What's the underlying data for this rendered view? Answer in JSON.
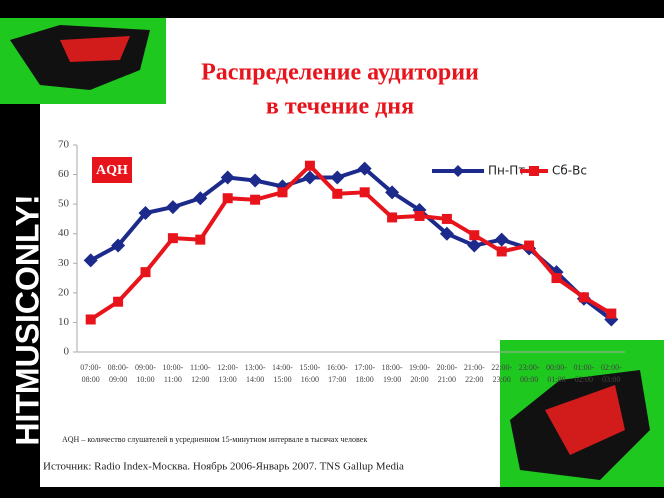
{
  "brand": "HITMUSICONLY!",
  "chart_data": {
    "type": "line",
    "title": [
      "Распределение аудитории",
      "в течение дня"
    ],
    "badge": "AQH",
    "footnote": "AQH – количество слушателей в усредненном 15-минутном интервале в тысячах человек",
    "source": "Источник: Radio Index-Москва. Ноябрь 2006-Январь 2007. TNS Gallup Media",
    "categories": [
      [
        "07:00-",
        "08:00"
      ],
      [
        "08:00-",
        "09:00"
      ],
      [
        "09:00-",
        "10:00"
      ],
      [
        "10:00-",
        "11:00"
      ],
      [
        "11:00-",
        "12:00"
      ],
      [
        "12:00-",
        "13:00"
      ],
      [
        "13:00-",
        "14:00"
      ],
      [
        "14:00-",
        "15:00"
      ],
      [
        "15:00-",
        "16:00"
      ],
      [
        "16:00-",
        "17:00"
      ],
      [
        "17:00-",
        "18:00"
      ],
      [
        "18:00-",
        "19:00"
      ],
      [
        "19:00-",
        "20:00"
      ],
      [
        "20:00-",
        "21:00"
      ],
      [
        "21:00-",
        "22:00"
      ],
      [
        "22:00-",
        "23:00"
      ],
      [
        "23:00-",
        "00:00"
      ],
      [
        "00:00-",
        "01:00"
      ],
      [
        "01:00-",
        "02:00"
      ],
      [
        "02:00-",
        "03:00"
      ]
    ],
    "series": [
      {
        "name": "Пн-Пт",
        "color": "#1c2a8c",
        "marker": "diamond",
        "values": [
          31,
          36,
          47,
          49,
          52,
          59,
          58,
          56,
          59,
          59,
          62,
          54,
          48,
          40,
          36,
          38,
          35,
          27,
          18,
          11
        ]
      },
      {
        "name": "Сб-Вс",
        "color": "#e8141c",
        "marker": "square",
        "values": [
          11,
          17,
          27,
          38.5,
          38,
          52,
          51.5,
          54,
          63,
          53.5,
          54,
          45.5,
          46,
          45,
          39.5,
          34,
          36,
          25,
          18.5,
          13
        ]
      }
    ],
    "ylim": [
      0,
      70
    ],
    "yticks": [
      0,
      10,
      20,
      30,
      40,
      50,
      60,
      70
    ],
    "grid": false
  }
}
